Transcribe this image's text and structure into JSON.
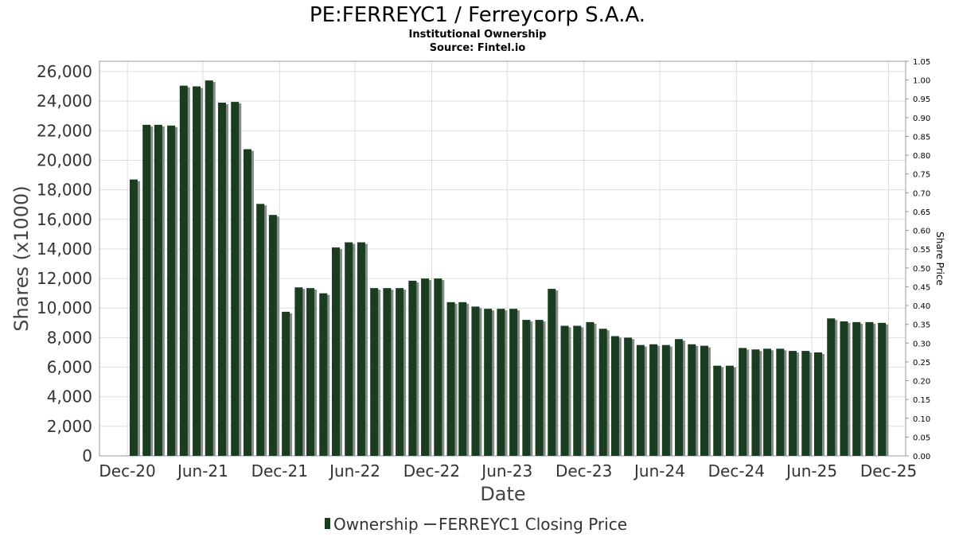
{
  "chart_data": {
    "type": "bar",
    "title": "PE:FERREYC1 / Ferreycorp S.A.A.",
    "subtitle": "Institutional Ownership",
    "source": "Source: Fintel.io",
    "xlabel": "Date",
    "ylabel": "Shares (x1000)",
    "ylabel_right": "Share Price",
    "ylim": [
      0,
      26700
    ],
    "ylim_right": [
      0,
      1.05
    ],
    "y_ticks": [
      0,
      2000,
      4000,
      6000,
      8000,
      10000,
      12000,
      14000,
      16000,
      18000,
      20000,
      22000,
      24000,
      26000
    ],
    "y_tick_labels": [
      "0",
      "2,000",
      "4,000",
      "6,000",
      "8,000",
      "10,000",
      "12,000",
      "14,000",
      "16,000",
      "18,000",
      "20,000",
      "22,000",
      "24,000",
      "26,000"
    ],
    "y_right_ticks": [
      0.0,
      0.05,
      0.1,
      0.15,
      0.2,
      0.25,
      0.3,
      0.35,
      0.4,
      0.45,
      0.5,
      0.55,
      0.6,
      0.65,
      0.7,
      0.75,
      0.8,
      0.85,
      0.9,
      0.95,
      1.0,
      1.05
    ],
    "y_right_tick_labels": [
      "0.00",
      "0.05",
      "0.10",
      "0.15",
      "0.20",
      "0.25",
      "0.30",
      "0.35",
      "0.40",
      "0.45",
      "0.50",
      "0.55",
      "0.60",
      "0.65",
      "0.70",
      "0.75",
      "0.80",
      "0.85",
      "0.90",
      "0.95",
      "1.00",
      "1.05"
    ],
    "x_range": [
      "2020-10-25",
      "2026-02-10"
    ],
    "x_ticks": [
      "2020-12-31",
      "2021-06-30",
      "2021-12-31",
      "2022-06-30",
      "2022-12-31",
      "2023-06-30",
      "2023-12-31",
      "2024-06-30",
      "2024-12-31",
      "2025-06-30",
      "2025-12-31"
    ],
    "x_tick_labels": [
      "Dec-20",
      "Jun-21",
      "Dec-21",
      "Jun-22",
      "Dec-22",
      "Jun-23",
      "Dec-23",
      "Jun-24",
      "Dec-24",
      "Jun-25",
      "Dec-25"
    ],
    "grid": true,
    "legend_position": "bottom",
    "colors": {
      "bar": "#1a3d22",
      "bar_shadow": "#8a8a8a",
      "price_line": "#444444"
    },
    "series": [
      {
        "name": "Ownership",
        "type": "bar",
        "x": [
          "2021-01-15",
          "2021-02-15",
          "2021-03-15",
          "2021-04-15",
          "2021-05-15",
          "2021-06-15",
          "2021-07-15",
          "2021-08-15",
          "2021-09-15",
          "2021-10-15",
          "2021-11-15",
          "2021-12-15",
          "2022-01-15",
          "2022-02-15",
          "2022-03-15",
          "2022-04-15",
          "2022-05-15",
          "2022-06-15",
          "2022-07-15",
          "2022-08-15",
          "2022-09-15",
          "2022-10-15",
          "2022-11-15",
          "2022-12-15",
          "2023-01-15",
          "2023-02-15",
          "2023-03-15",
          "2023-04-15",
          "2023-05-15",
          "2023-06-15",
          "2023-07-15",
          "2023-08-15",
          "2023-09-15",
          "2023-10-15",
          "2023-11-15",
          "2023-12-15",
          "2024-01-15",
          "2024-02-15",
          "2024-03-15",
          "2024-04-15",
          "2024-05-15",
          "2024-06-15",
          "2024-07-15",
          "2024-08-15",
          "2024-09-15",
          "2024-10-15",
          "2024-11-15",
          "2024-12-15",
          "2025-01-15",
          "2025-02-15",
          "2025-03-15",
          "2025-04-15",
          "2025-05-15",
          "2025-06-15",
          "2025-07-15",
          "2025-08-15",
          "2025-09-15",
          "2025-10-15",
          "2025-11-15",
          "2025-12-15"
        ],
        "values": [
          18700,
          22400,
          22400,
          22350,
          25050,
          25000,
          25400,
          23900,
          23950,
          20750,
          17050,
          16300,
          9750,
          11400,
          11350,
          11000,
          14100,
          14450,
          14450,
          11350,
          11350,
          11350,
          11850,
          12000,
          12000,
          10400,
          10400,
          10100,
          9950,
          9950,
          9950,
          9200,
          9200,
          11300,
          8800,
          8800,
          9050,
          8600,
          8100,
          8000,
          7500,
          7550,
          7500,
          7900,
          7550,
          7450,
          6100,
          6100,
          7300,
          7200,
          7250,
          7250,
          7100,
          7100,
          7000,
          9300,
          9100,
          9050,
          9050,
          9000
        ]
      },
      {
        "name": "FERREYC1 Closing Price",
        "type": "line",
        "values": []
      }
    ]
  }
}
